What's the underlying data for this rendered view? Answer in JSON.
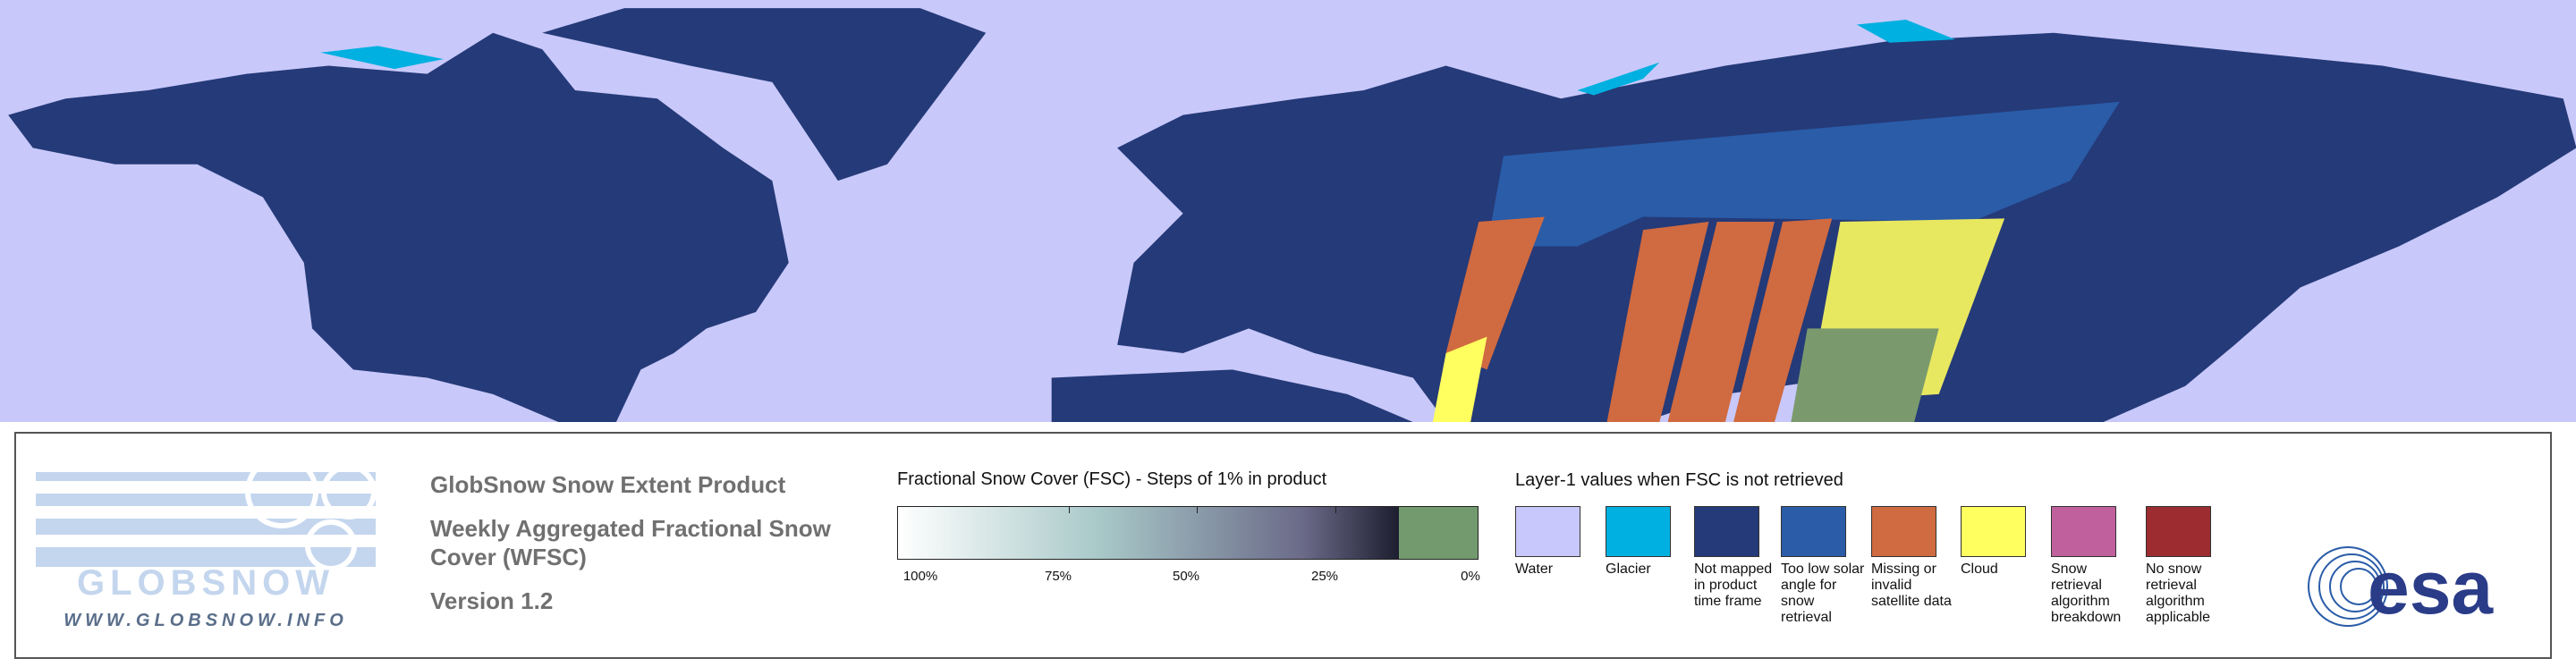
{
  "logo": {
    "name": "GLOBSNOW",
    "url": "WWW.GLOBSNOW.INFO"
  },
  "product": {
    "title": "GlobSnow Snow Extent Product",
    "subtitle": "Weekly Aggregated Fractional Snow Cover (WFSC)",
    "version": "Version 1.2"
  },
  "fsc_scale": {
    "title": "Fractional Snow Cover (FSC) - Steps of 1% in product",
    "tick_labels": [
      "100%",
      "75%",
      "50%",
      "25%",
      "0%"
    ]
  },
  "layer1": {
    "title": "Layer-1 values when FSC is not retrieved",
    "items": [
      {
        "label": "Water",
        "color": "#c8c8fc"
      },
      {
        "label": "Glacier",
        "color": "#00b0e0"
      },
      {
        "label": "Not mapped in product time frame",
        "color": "#253a78"
      },
      {
        "label": "Too low solar angle for snow retrieval",
        "color": "#2a5ca8"
      },
      {
        "label": "Missing or invalid satellite data",
        "color": "#d06a40"
      },
      {
        "label": "Cloud",
        "color": "#ffff60"
      },
      {
        "label": "Snow retrieval algorithm breakdown",
        "color": "#c0609c"
      },
      {
        "label": "No snow retrieval algorithm applicable",
        "color": "#9c2c30"
      }
    ]
  },
  "agency_logo": "esa"
}
